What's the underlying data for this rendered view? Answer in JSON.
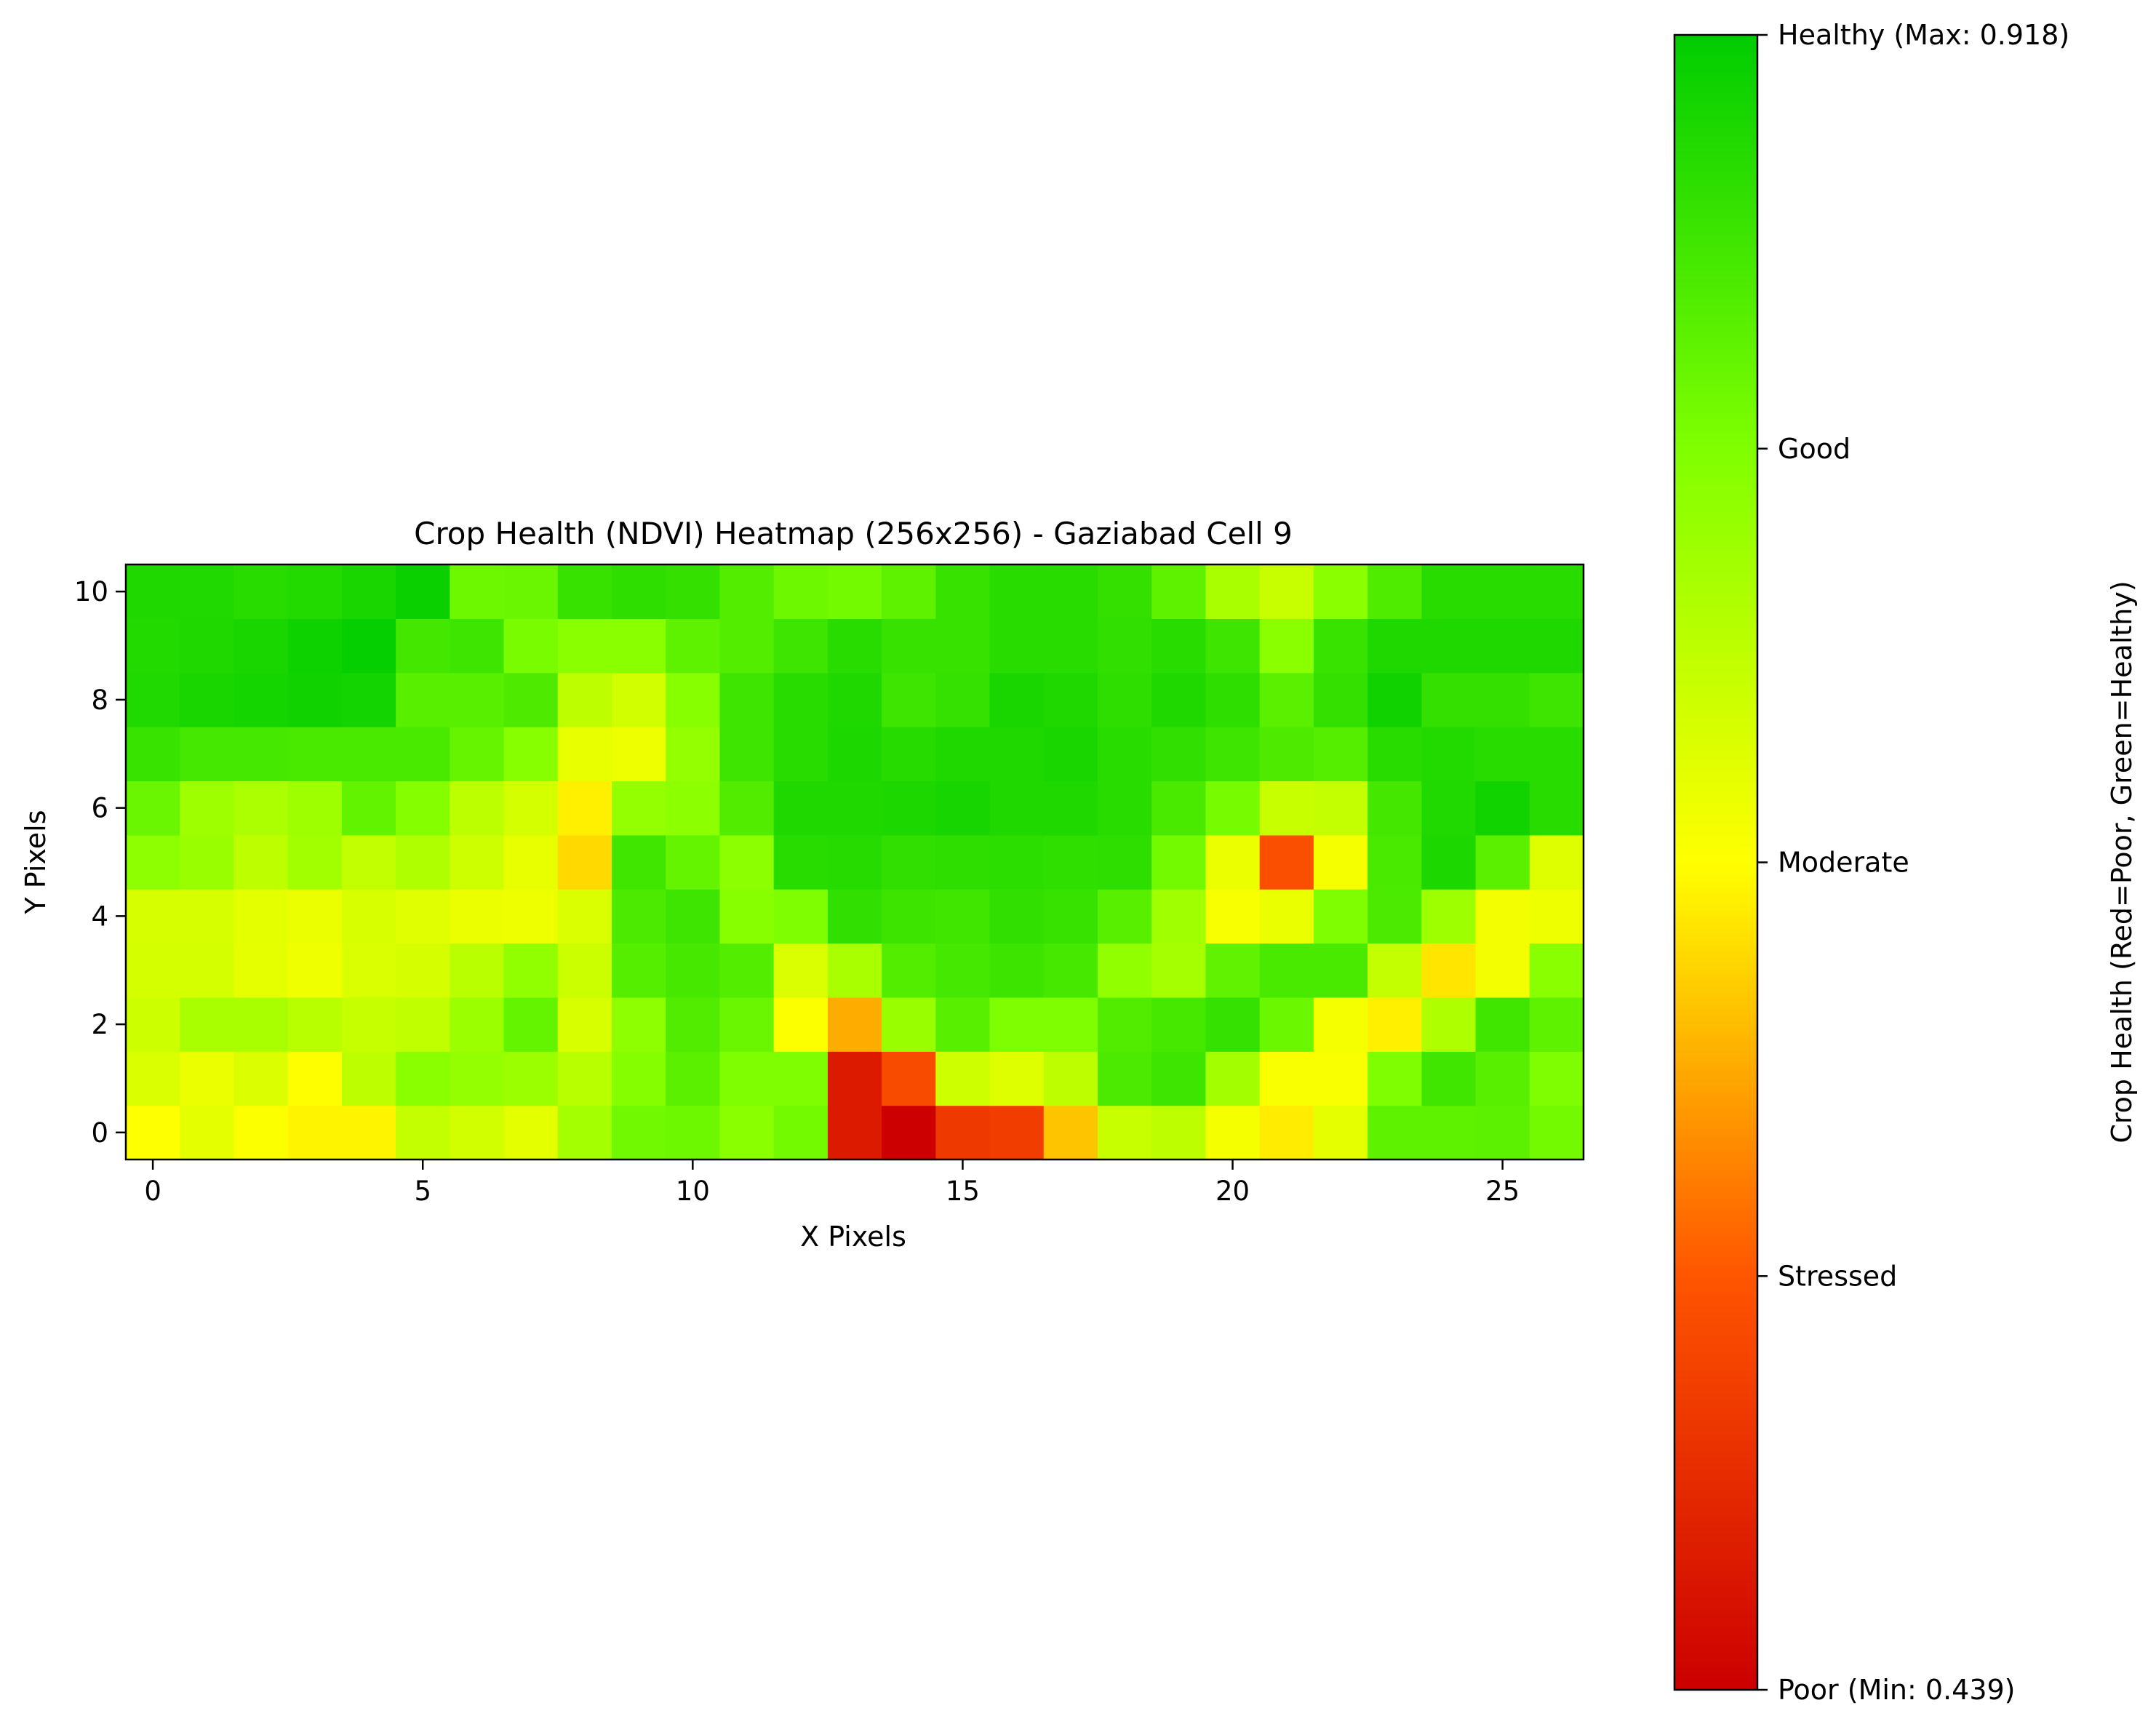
{
  "chart_data": {
    "type": "heatmap",
    "title": "Crop Health (NDVI) Heatmap (256x256) - Gaziabad Cell 9",
    "xlabel": "X Pixels",
    "ylabel": "Y Pixels",
    "x_ticks": [
      "0",
      "5",
      "10",
      "15",
      "20",
      "25"
    ],
    "y_ticks": [
      "0",
      "2",
      "4",
      "6",
      "8",
      "10"
    ],
    "xlim": [
      -0.5,
      26.5
    ],
    "ylim": [
      -0.5,
      10.5
    ],
    "colorbar": {
      "label": "Crop Health (Red=Poor, Green=Healthy)",
      "vmin": 0.439,
      "vmax": 0.918,
      "colors": [
        "#cc0000",
        "#ff5500",
        "#ffff00",
        "#80ff00",
        "#00cc00"
      ],
      "ticks": [
        {
          "value": 0.439,
          "label": "Poor (Min: 0.439)"
        },
        {
          "value": 0.55875,
          "label": "Stressed"
        },
        {
          "value": 0.6785,
          "label": "Moderate"
        },
        {
          "value": 0.79825,
          "label": "Good"
        },
        {
          "value": 0.918,
          "label": "Healthy (Max: 0.918)"
        }
      ]
    },
    "rows_bottom_to_top": [
      [
        0.679,
        0.705,
        0.681,
        0.671,
        0.671,
        0.734,
        0.722,
        0.705,
        0.764,
        0.813,
        0.815,
        0.789,
        0.81,
        0.475,
        0.439,
        0.52,
        0.525,
        0.637,
        0.73,
        0.74,
        0.688,
        0.665,
        0.702,
        0.83,
        0.83,
        0.832,
        0.81
      ],
      [
        0.713,
        0.696,
        0.712,
        0.678,
        0.74,
        0.789,
        0.78,
        0.773,
        0.745,
        0.794,
        0.834,
        0.8,
        0.8,
        0.475,
        0.545,
        0.725,
        0.71,
        0.74,
        0.847,
        0.86,
        0.765,
        0.683,
        0.684,
        0.8,
        0.857,
        0.835,
        0.8
      ],
      [
        0.727,
        0.76,
        0.76,
        0.745,
        0.733,
        0.738,
        0.772,
        0.824,
        0.715,
        0.785,
        0.842,
        0.82,
        0.681,
        0.62,
        0.775,
        0.835,
        0.8,
        0.8,
        0.842,
        0.852,
        0.868,
        0.818,
        0.688,
        0.668,
        0.755,
        0.857,
        0.83
      ],
      [
        0.719,
        0.719,
        0.702,
        0.693,
        0.714,
        0.718,
        0.744,
        0.781,
        0.728,
        0.838,
        0.852,
        0.84,
        0.714,
        0.76,
        0.84,
        0.853,
        0.862,
        0.852,
        0.782,
        0.762,
        0.828,
        0.85,
        0.85,
        0.735,
        0.66,
        0.69,
        0.79
      ],
      [
        0.717,
        0.717,
        0.705,
        0.697,
        0.716,
        0.708,
        0.696,
        0.695,
        0.713,
        0.847,
        0.86,
        0.792,
        0.8,
        0.872,
        0.862,
        0.858,
        0.872,
        0.867,
        0.835,
        0.768,
        0.686,
        0.698,
        0.8,
        0.847,
        0.77,
        0.69,
        0.695
      ],
      [
        0.786,
        0.775,
        0.74,
        0.766,
        0.736,
        0.754,
        0.726,
        0.7,
        0.652,
        0.857,
        0.824,
        0.787,
        0.88,
        0.882,
        0.872,
        0.875,
        0.877,
        0.874,
        0.876,
        0.81,
        0.697,
        0.55,
        0.688,
        0.85,
        0.892,
        0.834,
        0.71
      ],
      [
        0.82,
        0.77,
        0.758,
        0.77,
        0.826,
        0.794,
        0.742,
        0.72,
        0.668,
        0.779,
        0.787,
        0.842,
        0.89,
        0.89,
        0.892,
        0.897,
        0.89,
        0.89,
        0.88,
        0.85,
        0.808,
        0.73,
        0.735,
        0.855,
        0.888,
        0.902,
        0.88
      ],
      [
        0.865,
        0.853,
        0.853,
        0.85,
        0.85,
        0.85,
        0.823,
        0.792,
        0.7,
        0.695,
        0.78,
        0.86,
        0.88,
        0.892,
        0.882,
        0.89,
        0.89,
        0.894,
        0.88,
        0.872,
        0.86,
        0.845,
        0.838,
        0.88,
        0.885,
        0.88,
        0.88
      ],
      [
        0.888,
        0.895,
        0.898,
        0.903,
        0.9,
        0.835,
        0.835,
        0.845,
        0.74,
        0.722,
        0.792,
        0.86,
        0.88,
        0.89,
        0.86,
        0.868,
        0.895,
        0.89,
        0.875,
        0.89,
        0.875,
        0.834,
        0.87,
        0.903,
        0.87,
        0.87,
        0.86
      ],
      [
        0.886,
        0.89,
        0.894,
        0.905,
        0.912,
        0.855,
        0.86,
        0.805,
        0.79,
        0.79,
        0.83,
        0.84,
        0.86,
        0.88,
        0.867,
        0.867,
        0.88,
        0.88,
        0.872,
        0.88,
        0.86,
        0.79,
        0.865,
        0.89,
        0.89,
        0.89,
        0.89
      ],
      [
        0.89,
        0.888,
        0.88,
        0.885,
        0.895,
        0.908,
        0.815,
        0.82,
        0.866,
        0.876,
        0.87,
        0.84,
        0.815,
        0.81,
        0.83,
        0.867,
        0.88,
        0.88,
        0.87,
        0.83,
        0.76,
        0.73,
        0.79,
        0.843,
        0.88,
        0.88,
        0.88
      ]
    ]
  }
}
